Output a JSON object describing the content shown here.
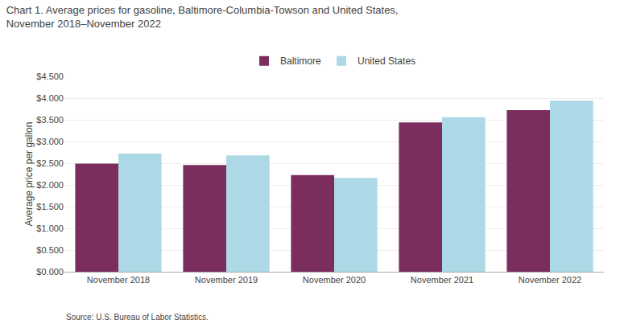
{
  "chart_data": {
    "type": "bar",
    "title": "Chart 1. Average prices for gasoline, Baltimore-Columbia-Towson and United States,\nNovember 2018–November 2022",
    "ylabel": "Average price per gallon",
    "annotations": [
      "Source: U.S. Bureau of Labor Statistics."
    ],
    "categories": [
      "November 2018",
      "November 2019",
      "November 2020",
      "November 2021",
      "November 2022"
    ],
    "series": [
      {
        "name": "Baltimore",
        "color": "#7B2D5E",
        "values": [
          2.49,
          2.46,
          2.225,
          3.44,
          3.72
        ]
      },
      {
        "name": "United States",
        "color": "#ADD8E6",
        "values": [
          2.72,
          2.68,
          2.16,
          3.56,
          3.94
        ]
      }
    ],
    "ylim": [
      0,
      4.5
    ],
    "yticks": [
      {
        "value": 0.0,
        "label": "$0.000"
      },
      {
        "value": 0.5,
        "label": "$0.500"
      },
      {
        "value": 1.0,
        "label": "$1.000"
      },
      {
        "value": 1.5,
        "label": "$1.500"
      },
      {
        "value": 2.0,
        "label": "$2.000"
      },
      {
        "value": 2.5,
        "label": "$2.500"
      },
      {
        "value": 3.0,
        "label": "$3.000"
      },
      {
        "value": 3.5,
        "label": "$3.500"
      },
      {
        "value": 4.0,
        "label": "$4.000"
      },
      {
        "value": 4.5,
        "label": "$4.500"
      }
    ],
    "grid": true,
    "legend": "top"
  }
}
